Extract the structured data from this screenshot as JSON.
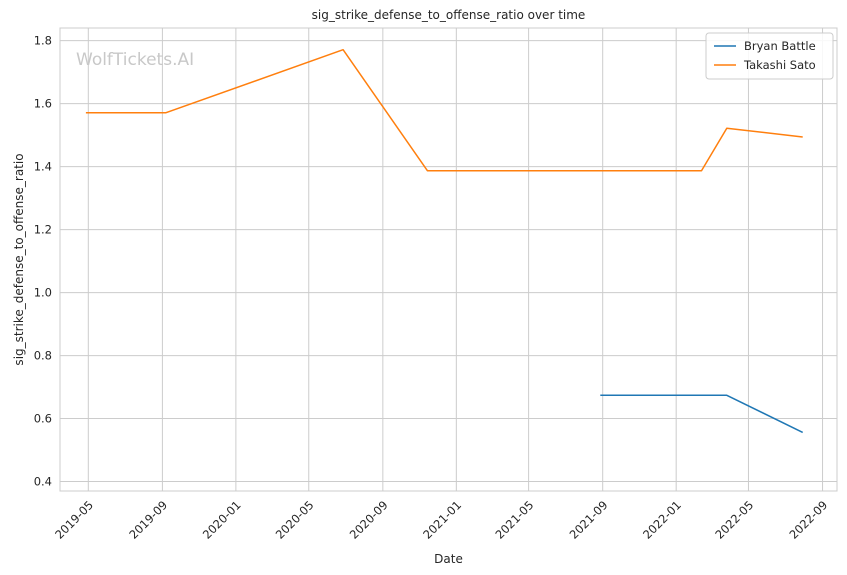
{
  "chart_data": {
    "type": "line",
    "title": "sig_strike_defense_to_offense_ratio over time",
    "xlabel": "Date",
    "ylabel": "sig_strike_defense_to_offense_ratio",
    "watermark": "WolfTickets.AI",
    "x_range": [
      "2019-03-15",
      "2022-09-25"
    ],
    "ylim": [
      0.37,
      1.84
    ],
    "grid": true,
    "legend_position": "top-right",
    "y_ticks": [
      "0.4",
      "0.6",
      "0.8",
      "1.0",
      "1.2",
      "1.4",
      "1.6",
      "1.8"
    ],
    "x_ticks": [
      "2019-05",
      "2019-09",
      "2020-01",
      "2020-05",
      "2020-09",
      "2021-01",
      "2021-05",
      "2021-09",
      "2022-01",
      "2022-05",
      "2022-09"
    ],
    "series": [
      {
        "name": "Bryan Battle",
        "color": "#1f77b4",
        "points": [
          {
            "x": "2021-08-28",
            "y": 0.674
          },
          {
            "x": "2022-03-26",
            "y": 0.674
          },
          {
            "x": "2022-07-30",
            "y": 0.556
          }
        ]
      },
      {
        "name": "Takashi Sato",
        "color": "#ff7f0e",
        "points": [
          {
            "x": "2019-04-27",
            "y": 1.571
          },
          {
            "x": "2019-09-07",
            "y": 1.571
          },
          {
            "x": "2020-06-27",
            "y": 1.771
          },
          {
            "x": "2020-11-14",
            "y": 1.387
          },
          {
            "x": "2022-02-12",
            "y": 1.387
          },
          {
            "x": "2022-03-26",
            "y": 1.522
          },
          {
            "x": "2022-07-30",
            "y": 1.494
          }
        ]
      }
    ]
  }
}
